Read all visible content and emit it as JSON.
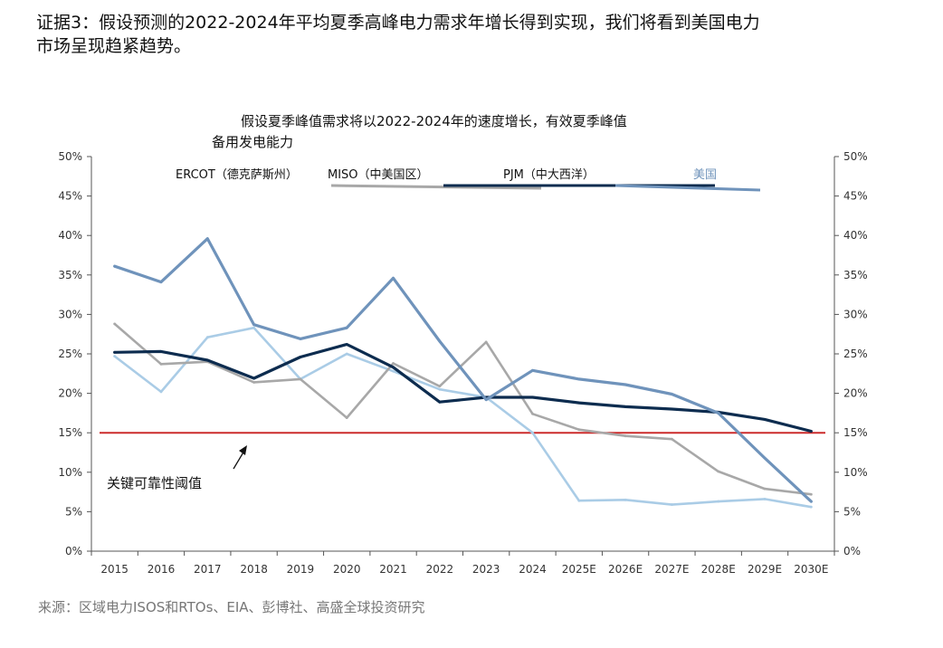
{
  "heading": {
    "line1": "证据3：假设预测的2022-2024年平均夏季高峰电力需求年增长得到实现，我们将看到美国电力",
    "line2": "市场呈现趋紧趋势。"
  },
  "source": "来源：区域电力ISOS和RTOs、EIA、彭博社、高盛全球投资研究",
  "chart_data": {
    "type": "line",
    "title_lines": [
      "假设夏季峰值需求将以2022-2024年的速度增长，有效夏季峰值",
      "备用发电能力"
    ],
    "categories": [
      "2015",
      "2016",
      "2017",
      "2018",
      "2019",
      "2020",
      "2021",
      "2022",
      "2023",
      "2024",
      "2025E",
      "2026E",
      "2027E",
      "2028E",
      "2029E",
      "2030E"
    ],
    "ylim": [
      0,
      50
    ],
    "yticks": [
      "0%",
      "5%",
      "10%",
      "15%",
      "20%",
      "25%",
      "30%",
      "35%",
      "40%",
      "45%",
      "50%"
    ],
    "secondary_axis": true,
    "series": [
      {
        "name": "ERCOT（德克萨斯州）",
        "color": "#aacce6",
        "values": [
          24.7,
          20.2,
          27.1,
          28.3,
          21.8,
          25.0,
          22.8,
          20.5,
          19.5,
          15.0,
          6.4,
          6.5,
          5.9,
          6.3,
          6.6,
          5.6
        ]
      },
      {
        "name": "MISO（中美国区）",
        "color": "#a8a8a8",
        "values": [
          28.8,
          23.7,
          24.0,
          21.4,
          21.8,
          16.9,
          23.8,
          20.9,
          26.5,
          17.4,
          15.4,
          14.6,
          14.2,
          10.1,
          7.9,
          7.2
        ]
      },
      {
        "name": "PJM（中大西洋）",
        "color": "#0d2c4f",
        "values": [
          25.2,
          25.3,
          24.2,
          21.9,
          24.6,
          26.2,
          23.3,
          18.9,
          19.5,
          19.5,
          18.8,
          18.3,
          18.0,
          17.6,
          16.7,
          15.2
        ]
      },
      {
        "name": "美国",
        "color": "#6f93bb",
        "values": [
          36.1,
          34.1,
          39.6,
          28.7,
          26.9,
          28.3,
          34.6,
          26.6,
          19.2,
          22.9,
          21.8,
          21.1,
          19.9,
          17.5,
          11.8,
          6.3
        ]
      }
    ],
    "threshold": {
      "value": 15,
      "color": "#cc2b2b",
      "label": "关键可靠性阈值"
    },
    "grid": false,
    "legend_placement": "top"
  }
}
